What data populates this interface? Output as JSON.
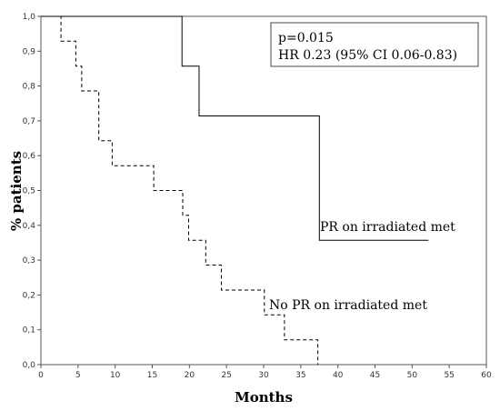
{
  "chart_data": {
    "type": "line",
    "xlabel": "Months",
    "ylabel": "% patients",
    "xlim": [
      0,
      60
    ],
    "ylim": [
      0,
      1.0
    ],
    "x_ticks": [
      "0",
      "5",
      "10",
      "15",
      "20",
      "25",
      "30",
      "35",
      "40",
      "45",
      "50",
      "55",
      "60"
    ],
    "y_ticks": [
      "0,0",
      "0,1",
      "0,2",
      "0,3",
      "0,4",
      "0,5",
      "0,6",
      "0,7",
      "0,8",
      "0,9",
      "1,0"
    ],
    "grid": false,
    "stats_box": {
      "lines": [
        "p=0.015",
        "HR 0.23  (95% CI 0.06-0.83)"
      ]
    },
    "series": [
      {
        "name": "PR on irradiated met",
        "style": "solid",
        "color": "#000000",
        "x": [
          0,
          19.0,
          19.0,
          21.3,
          21.3,
          37.5,
          37.5,
          52.2
        ],
        "y": [
          1.0,
          1.0,
          0.857,
          0.857,
          0.714,
          0.714,
          0.357,
          0.357
        ]
      },
      {
        "name": "No PR on irradiated met",
        "style": "dashed",
        "color": "#000000",
        "x": [
          0,
          2.7,
          2.7,
          4.7,
          4.7,
          5.5,
          5.5,
          7.8,
          7.8,
          9.6,
          9.6,
          15.2,
          15.2,
          19.1,
          19.1,
          19.9,
          19.9,
          22.2,
          22.2,
          24.3,
          24.3,
          30.1,
          30.1,
          32.8,
          32.8,
          37.3,
          37.3
        ],
        "y": [
          1.0,
          1.0,
          0.929,
          0.929,
          0.857,
          0.857,
          0.786,
          0.786,
          0.643,
          0.643,
          0.571,
          0.571,
          0.5,
          0.5,
          0.429,
          0.429,
          0.357,
          0.357,
          0.286,
          0.286,
          0.214,
          0.214,
          0.143,
          0.143,
          0.071,
          0.071,
          0.0
        ]
      }
    ]
  }
}
